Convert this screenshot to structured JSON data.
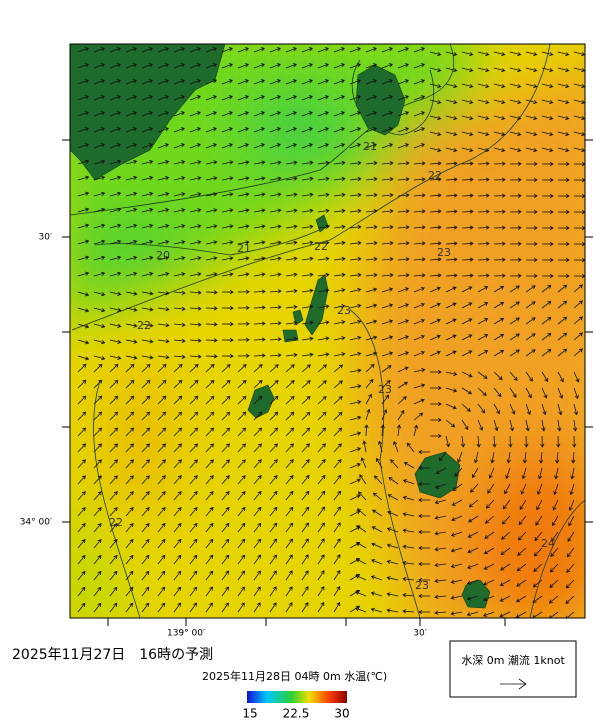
{
  "header": {
    "title": "2025年11月27日　16時の予測",
    "subtitle": "2025年11月28日 04時 0m 水温(℃)"
  },
  "axes": {
    "lat_labels": [
      "30′",
      "34° 00′"
    ],
    "lon_labels": [
      "139° 00′",
      "30′"
    ]
  },
  "contour_labels": [
    21,
    22,
    20,
    21,
    22,
    22,
    23,
    23,
    23,
    22,
    24,
    23
  ],
  "colorbar": {
    "ticks": [
      15,
      22.5,
      30
    ]
  },
  "legend": {
    "label": "水深 0m 潮流 1knot"
  }
}
